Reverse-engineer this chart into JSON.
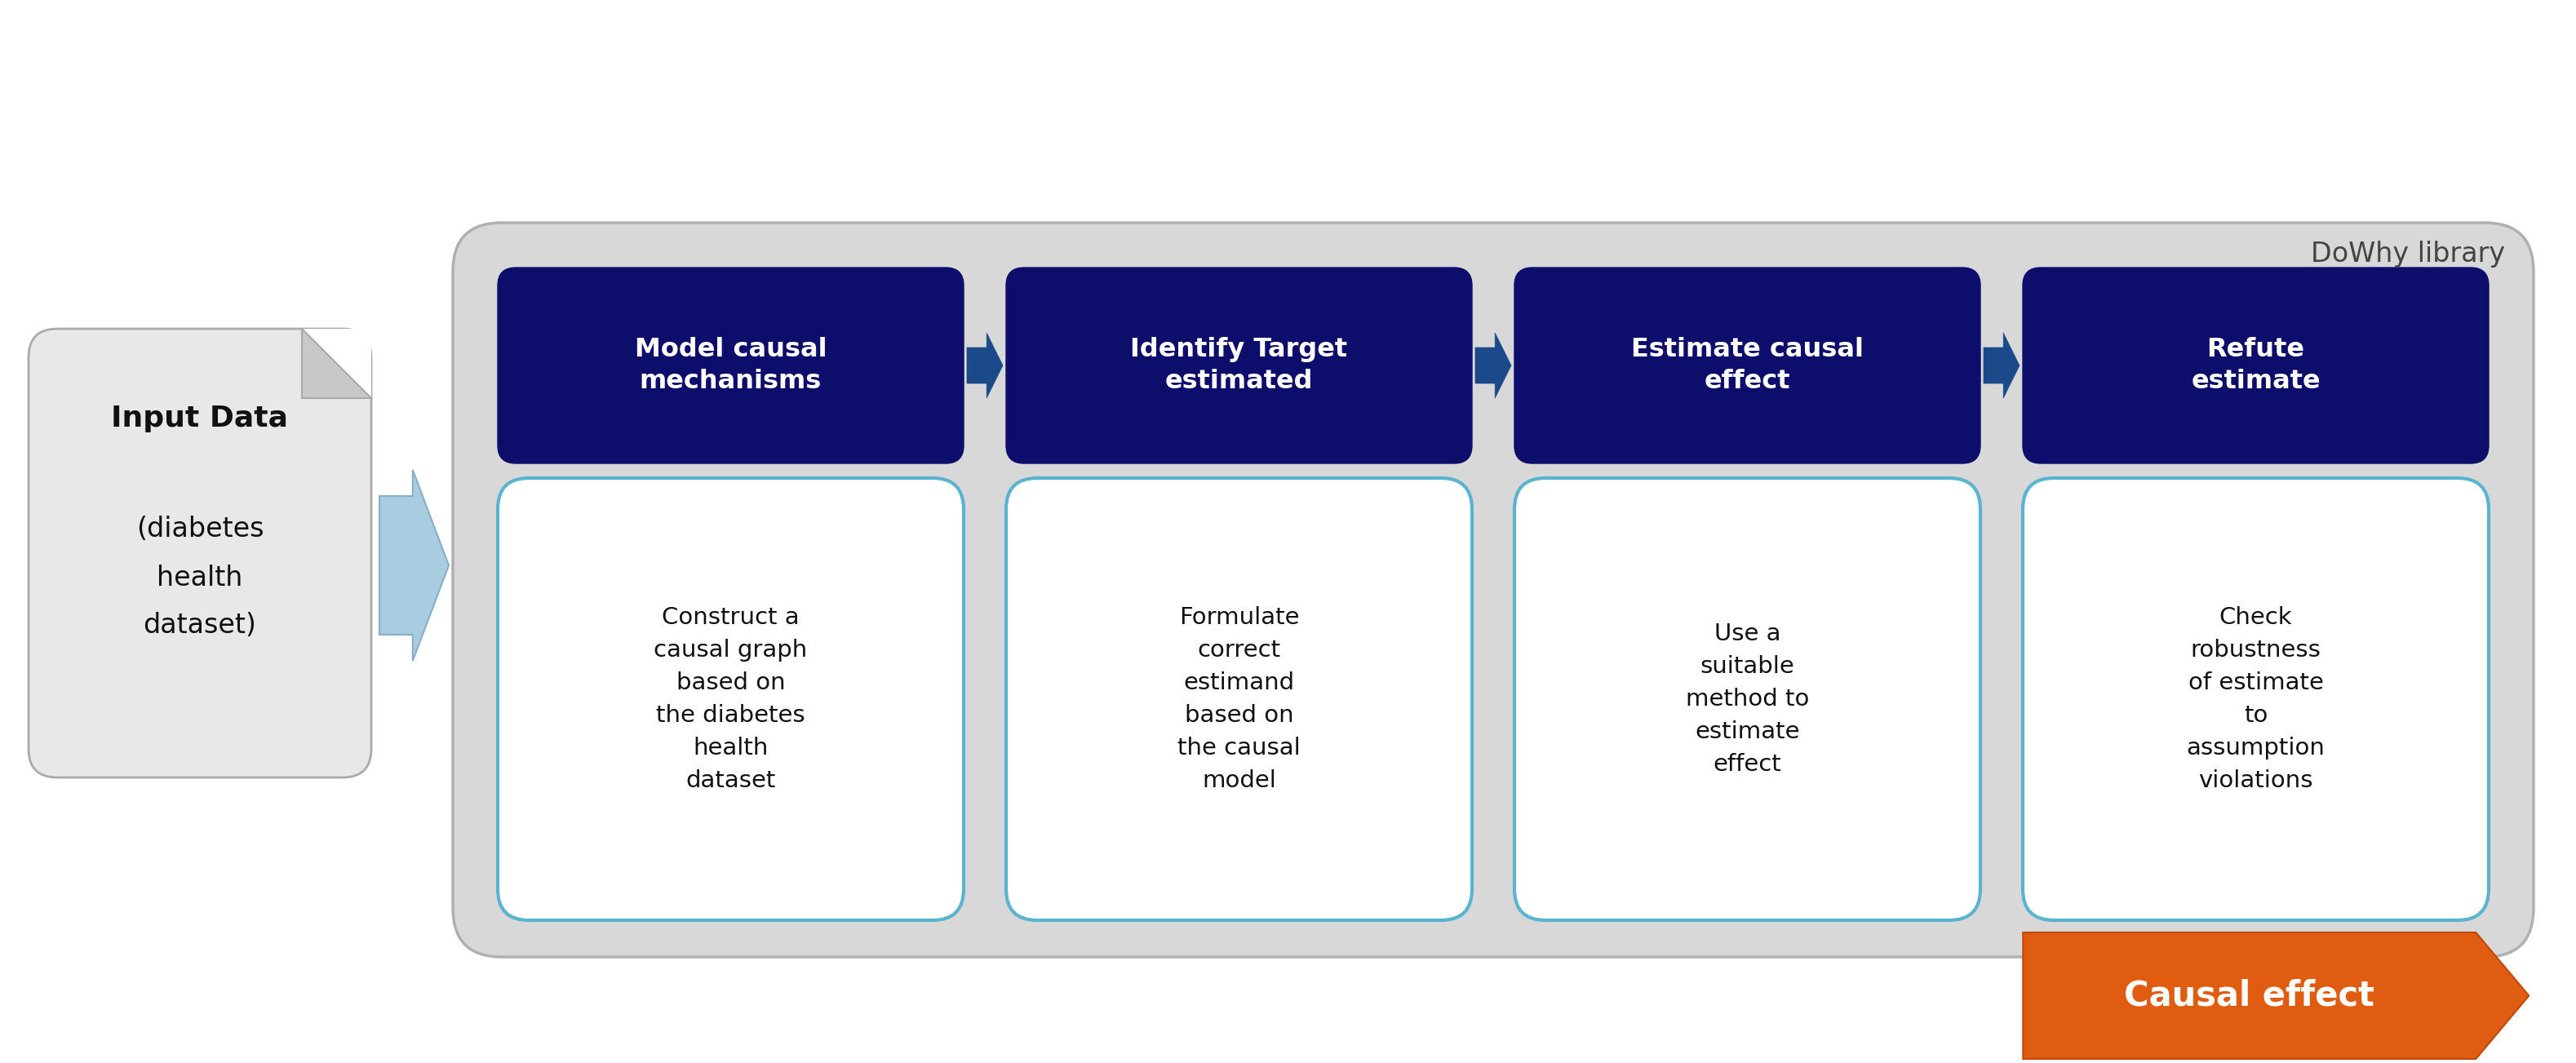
{
  "dowhy_label": "DoWhy library",
  "input_title": "Input Data",
  "input_subtitle": "(diabetes\nhealth\ndataset)",
  "steps": [
    {
      "title": "Model causal\nmechanisms",
      "body": "Construct a\ncausal graph\nbased on\nthe diabetes\nhealth\ndataset"
    },
    {
      "title": "Identify Target\nestimated",
      "body": "Formulate\ncorrect\nestimand\nbased on\nthe causal\nmodel"
    },
    {
      "title": "Estimate causal\neffect",
      "body": "Use a\nsuitable\nmethod to\nestimate\neffect"
    },
    {
      "title": "Refute\nestimate",
      "body": "Check\nrobustness\nof estimate\nto\nassumption\nviolations"
    }
  ],
  "output_label": "Causal effect",
  "navy": "#0d0d6b",
  "light_blue_border": "#5ab4d0",
  "arrow_fill": "#a8cce0",
  "arrow_edge": "#88aec8",
  "dark_arrow": "#1a4a8a",
  "teal_arrow": "#1a88b0",
  "orange_fill": "#e05c10",
  "gray_box": "#d8d8d8",
  "gray_edge": "#b0b0b0",
  "input_fill": "#e8e8e8",
  "input_edge": "#aaaaaa",
  "fold_fill": "#c8c8c8",
  "white": "#ffffff",
  "text_dark": "#111111",
  "text_gray": "#444444"
}
